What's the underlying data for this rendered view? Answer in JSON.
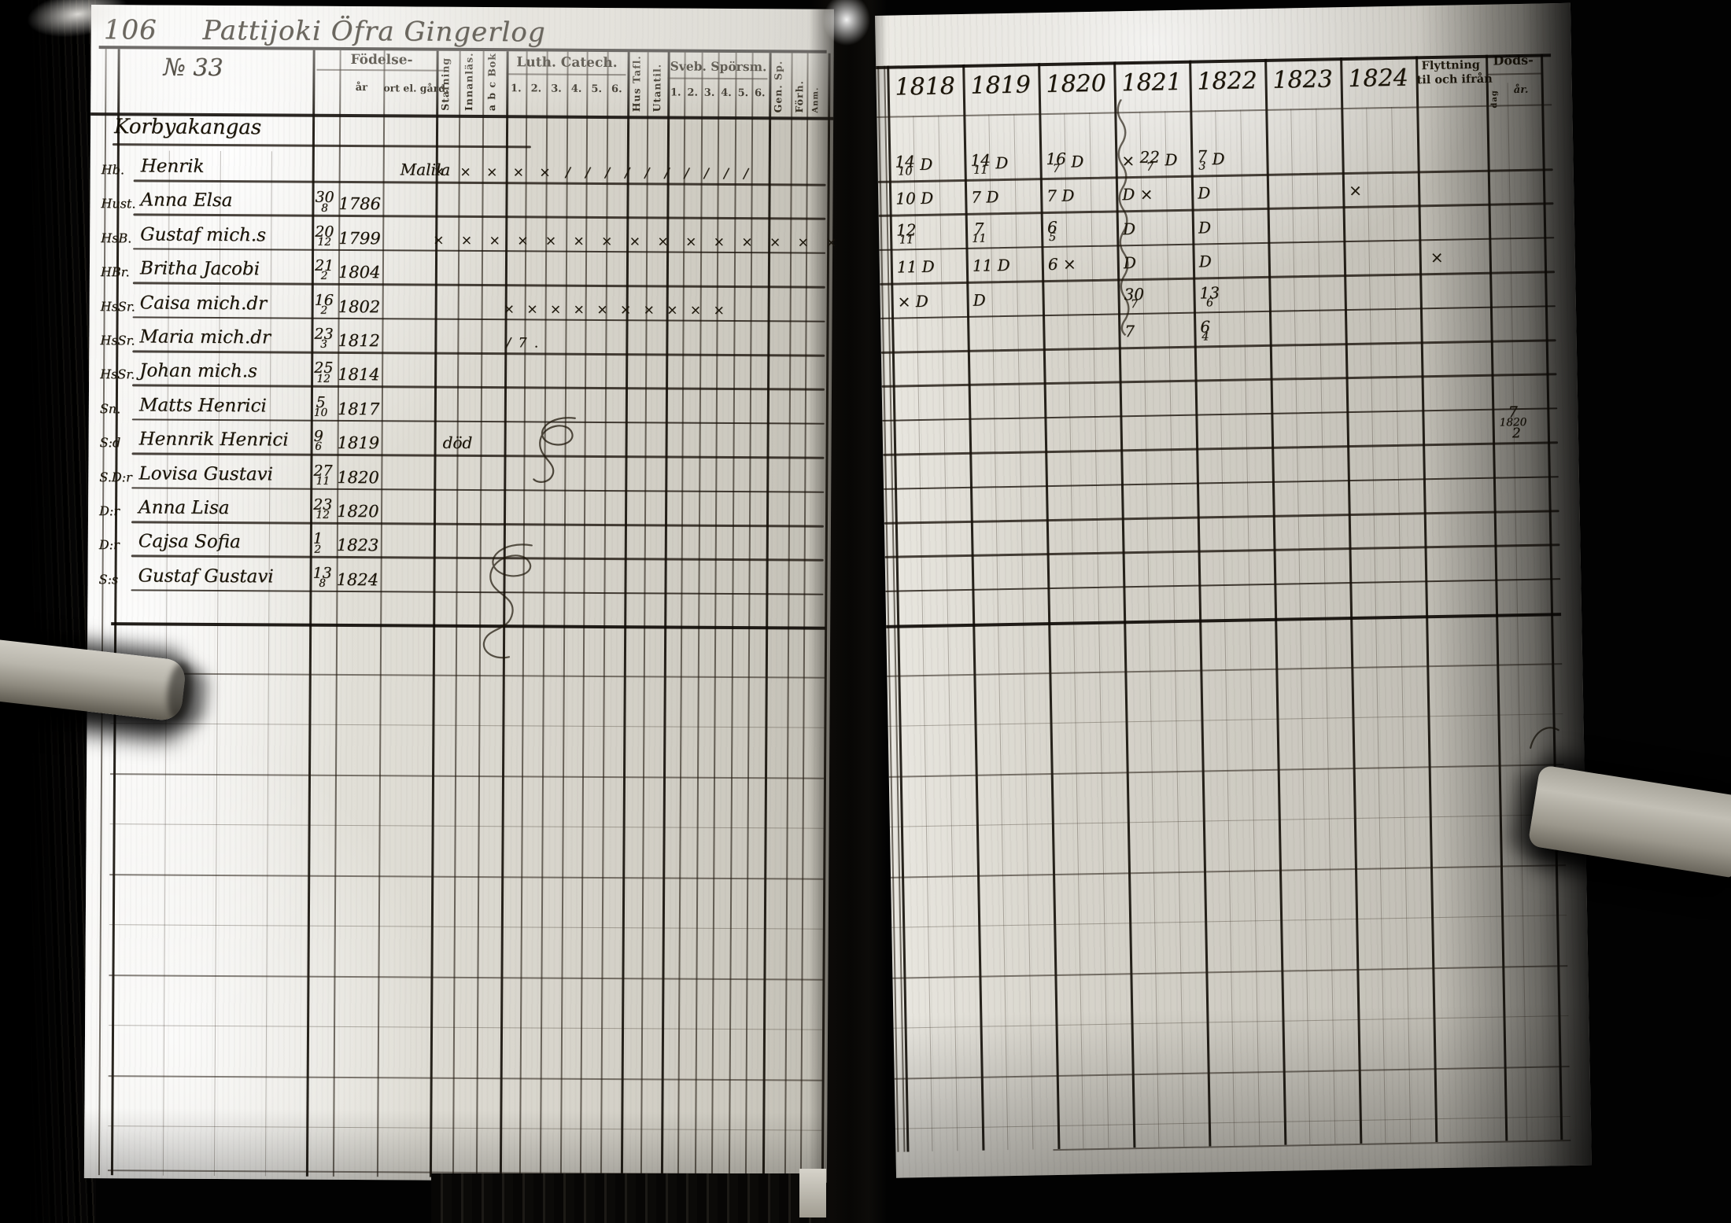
{
  "scan": {
    "page_number": "106",
    "title_script": "Pattijoki Öfra Gingerlog",
    "household_number": "№ 33",
    "village": "Korbyakangas"
  },
  "colors": {
    "ink": "#1a1408",
    "paper": "#d7d4cb",
    "background": "#000000"
  },
  "left_header": {
    "fodelse": "Födelse-",
    "fodelse_ar": "år",
    "fodelse_ort": "ort el. gård.",
    "stafning": "Stafning",
    "innanlas": "Innanläs.",
    "abc": "a b c Bok",
    "luth": "Luth. Catech.",
    "luth_nums": [
      "1.",
      "2.",
      "3.",
      "4.",
      "5.",
      "6."
    ],
    "hustafl": "Hus Tafl.",
    "utantil": "Utantil.",
    "sveb": "Sveb. Spörsm.",
    "sveb_nums": [
      "1.",
      "2.",
      "3.",
      "4.",
      "5.",
      "6."
    ],
    "gensp": "Gen. Sp.",
    "forhor": "Förh.",
    "anm": "Anm."
  },
  "records": [
    {
      "role": "Hb.",
      "name": "Henrik",
      "day": "",
      "year": "",
      "ort": "Malila",
      "note": "",
      "marks": "× × × × × / / / / / / / / / /"
    },
    {
      "role": "Hust.",
      "name": "Anna Elsa",
      "day": "30/8",
      "year": "1786",
      "ort": "",
      "note": "",
      "marks": ""
    },
    {
      "role": "HsB.",
      "name": "Gustaf mich.s",
      "day": "20/12",
      "year": "1799",
      "ort": "",
      "note": "",
      "marks": "× × × × × × × × × × × × × × ×"
    },
    {
      "role": "HBr.",
      "name": "Britha Jacobi",
      "day": "21/2",
      "year": "1804",
      "ort": "",
      "note": "",
      "marks": ""
    },
    {
      "role": "HsSr.",
      "name": "Caisa mich.dr",
      "day": "16/2",
      "year": "1802",
      "ort": "",
      "note": "",
      "marks": "× × × × × × × × × ×"
    },
    {
      "role": "HsSr.",
      "name": "Maria mich.dr",
      "day": "23/3",
      "year": "1812",
      "ort": "",
      "note": "",
      "marks": "/ 7 ."
    },
    {
      "role": "HsSr.",
      "name": "Johan mich.s",
      "day": "25/12",
      "year": "1814",
      "ort": "",
      "note": "",
      "marks": ""
    },
    {
      "role": "Sn.",
      "name": "Matts Henrici",
      "day": "5/10",
      "year": "1817",
      "ort": "",
      "note": "",
      "marks": ""
    },
    {
      "role": "S:d",
      "name": "Hennrik Henrici",
      "day": "9/6",
      "year": "1819",
      "ort": "",
      "note": "död",
      "marks": ""
    },
    {
      "role": "S.D:r",
      "name": "Lovisa Gustavi",
      "day": "27/11",
      "year": "1820",
      "ort": "",
      "note": "",
      "marks": ""
    },
    {
      "role": "D:r",
      "name": "Anna Lisa",
      "day": "23/12",
      "year": "1820",
      "ort": "",
      "note": "",
      "marks": ""
    },
    {
      "role": "D:r",
      "name": "Cajsa Sofia",
      "day": "1/2",
      "year": "1823",
      "ort": "",
      "note": "",
      "marks": ""
    },
    {
      "role": "S:s",
      "name": "Gustaf Gustavi",
      "day": "13/8",
      "year": "1824",
      "ort": "",
      "note": "",
      "marks": ""
    }
  ],
  "right_header": {
    "years": [
      "1818",
      "1819",
      "1820",
      "1821",
      "1822",
      "1823",
      "1824"
    ],
    "flytt_1": "Flyttning",
    "flytt_2": "til och ifrån",
    "dods": "Döds-",
    "dods_dag": "dag",
    "dods_ar": "år."
  },
  "right_entries": [
    {
      "r": 0,
      "c": 0,
      "t": "14/10 D"
    },
    {
      "r": 0,
      "c": 1,
      "t": "14/11 D"
    },
    {
      "r": 0,
      "c": 2,
      "t": "16/7 D"
    },
    {
      "r": 0,
      "c": 3,
      "t": "× 22/7 D"
    },
    {
      "r": 0,
      "c": 4,
      "t": "7/3 D"
    },
    {
      "r": 1,
      "c": 0,
      "t": "10 D"
    },
    {
      "r": 1,
      "c": 1,
      "t": "7 D"
    },
    {
      "r": 1,
      "c": 2,
      "t": "7 D"
    },
    {
      "r": 1,
      "c": 3,
      "t": "D ×"
    },
    {
      "r": 1,
      "c": 4,
      "t": "D"
    },
    {
      "r": 1,
      "c": 6,
      "t": "×"
    },
    {
      "r": 2,
      "c": 0,
      "t": "12/11"
    },
    {
      "r": 2,
      "c": 1,
      "t": "7/11"
    },
    {
      "r": 2,
      "c": 2,
      "t": "6/5"
    },
    {
      "r": 2,
      "c": 3,
      "t": "D"
    },
    {
      "r": 2,
      "c": 4,
      "t": "D"
    },
    {
      "r": 3,
      "c": 0,
      "t": "11 D"
    },
    {
      "r": 3,
      "c": 1,
      "t": "11 D"
    },
    {
      "r": 3,
      "c": 2,
      "t": "6 ×"
    },
    {
      "r": 3,
      "c": 3,
      "t": "D"
    },
    {
      "r": 3,
      "c": 4,
      "t": "D"
    },
    {
      "r": 3,
      "c": 7,
      "t": "×"
    },
    {
      "r": 4,
      "c": 0,
      "t": "× D"
    },
    {
      "r": 4,
      "c": 1,
      "t": "D"
    },
    {
      "r": 4,
      "c": 3,
      "t": "30/7"
    },
    {
      "r": 4,
      "c": 4,
      "t": "13/6"
    },
    {
      "r": 5,
      "c": 3,
      "t": "7"
    },
    {
      "r": 5,
      "c": 4,
      "t": "6/4"
    }
  ],
  "death_note": {
    "value": "7/1820",
    "under": "2"
  }
}
